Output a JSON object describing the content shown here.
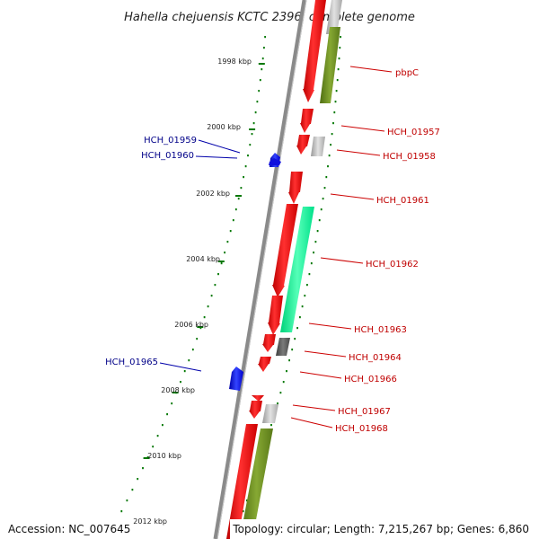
{
  "title": "Hahella chejuensis KCTC 2396, complete genome",
  "footer": {
    "accession": "Accession: NC_007645",
    "topology": "Topology: circular; Length: 7,215,267 bp; Genes: 6,860"
  },
  "scale": {
    "unit": "kbp",
    "ticks": [
      "1998 kbp",
      "2000 kbp",
      "2002 kbp",
      "2004 kbp",
      "2006 kbp",
      "2008 kbp",
      "2010 kbp",
      "2012 kbp"
    ]
  },
  "genes": [
    {
      "label": "pbpC",
      "strand": "forward"
    },
    {
      "label": "HCH_01957",
      "strand": "forward"
    },
    {
      "label": "HCH_01958",
      "strand": "forward"
    },
    {
      "label": "HCH_01959",
      "strand": "reverse"
    },
    {
      "label": "HCH_01960",
      "strand": "reverse"
    },
    {
      "label": "HCH_01961",
      "strand": "forward"
    },
    {
      "label": "HCH_01962",
      "strand": "forward"
    },
    {
      "label": "HCH_01963",
      "strand": "forward"
    },
    {
      "label": "HCH_01964",
      "strand": "forward"
    },
    {
      "label": "HCH_01965",
      "strand": "reverse"
    },
    {
      "label": "HCH_01966",
      "strand": "forward"
    },
    {
      "label": "HCH_01967",
      "strand": "forward"
    },
    {
      "label": "HCH_01968",
      "strand": "forward"
    }
  ],
  "colors": {
    "gene_forward": "#ff0000",
    "gene_reverse": "#0000ff",
    "feature_olive": "#6b8e23",
    "feature_aqua": "#00ff99",
    "feature_grey": "#b0b0b0",
    "feature_darkgrey": "#606060",
    "backbone": "#808080",
    "scale": "#007700"
  }
}
